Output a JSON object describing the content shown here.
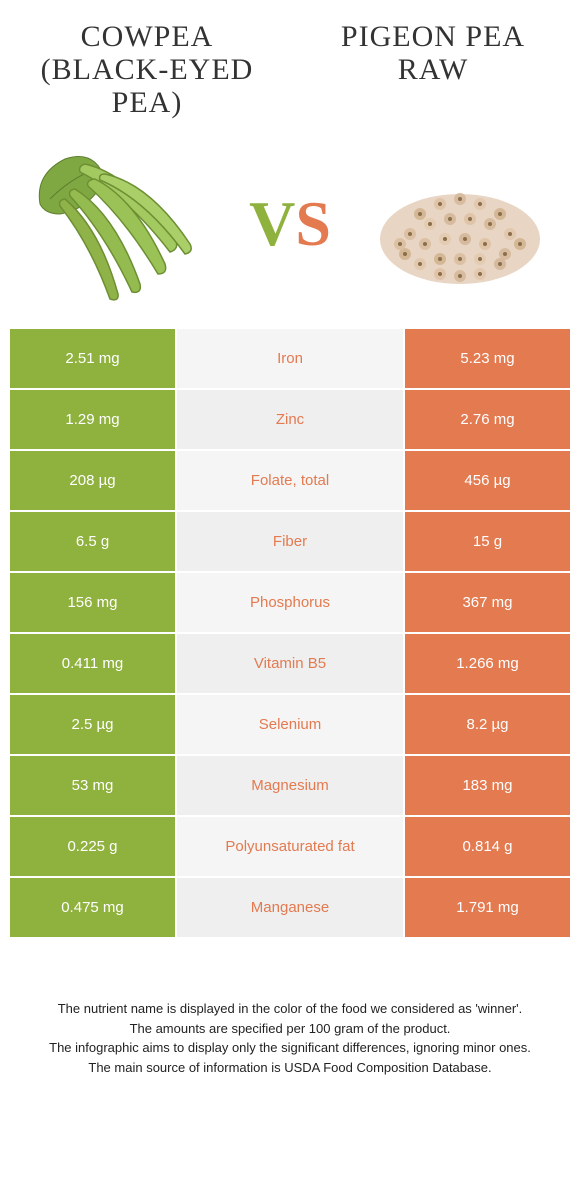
{
  "left_title": "Cowpea (Black-Eyed Pea)",
  "right_title": "Pigeon Pea Raw",
  "colors": {
    "left_bg": "#8fb13e",
    "right_bg": "#e37a50",
    "mid_bg_odd": "#f5f5f5",
    "mid_bg_even": "#efefef",
    "mid_text_left": "#8fb13e",
    "mid_text_right": "#e37a50"
  },
  "rows": [
    {
      "left": "2.51 mg",
      "label": "Iron",
      "right": "5.23 mg",
      "winner": "right"
    },
    {
      "left": "1.29 mg",
      "label": "Zinc",
      "right": "2.76 mg",
      "winner": "right"
    },
    {
      "left": "208 µg",
      "label": "Folate, total",
      "right": "456 µg",
      "winner": "right"
    },
    {
      "left": "6.5 g",
      "label": "Fiber",
      "right": "15 g",
      "winner": "right"
    },
    {
      "left": "156 mg",
      "label": "Phosphorus",
      "right": "367 mg",
      "winner": "right"
    },
    {
      "left": "0.411 mg",
      "label": "Vitamin B5",
      "right": "1.266 mg",
      "winner": "right"
    },
    {
      "left": "2.5 µg",
      "label": "Selenium",
      "right": "8.2 µg",
      "winner": "right"
    },
    {
      "left": "53 mg",
      "label": "Magnesium",
      "right": "183 mg",
      "winner": "right"
    },
    {
      "left": "0.225 g",
      "label": "Polyunsaturated fat",
      "right": "0.814 g",
      "winner": "right"
    },
    {
      "left": "0.475 mg",
      "label": "Manganese",
      "right": "1.791 mg",
      "winner": "right"
    }
  ],
  "footer_lines": [
    "The nutrient name is displayed in the color of the food we considered as 'winner'.",
    "The amounts are specified per 100 gram of the product.",
    "The infographic aims to display only the significant differences, ignoring minor ones.",
    "The main source of information is USDA Food Composition Database."
  ]
}
